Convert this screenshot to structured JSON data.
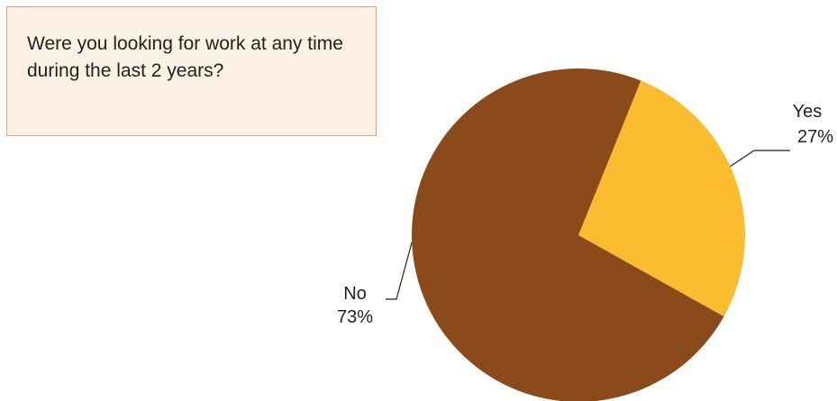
{
  "question": "Were you looking for work at any time during the last 2 years?",
  "chart_data": {
    "type": "pie",
    "title": "",
    "categories": [
      "Yes",
      "No"
    ],
    "values": [
      27,
      73
    ],
    "value_labels": [
      "27%",
      "73%"
    ],
    "colors": [
      "#fbbc2f",
      "#8b4a1a"
    ],
    "legend": "none"
  }
}
